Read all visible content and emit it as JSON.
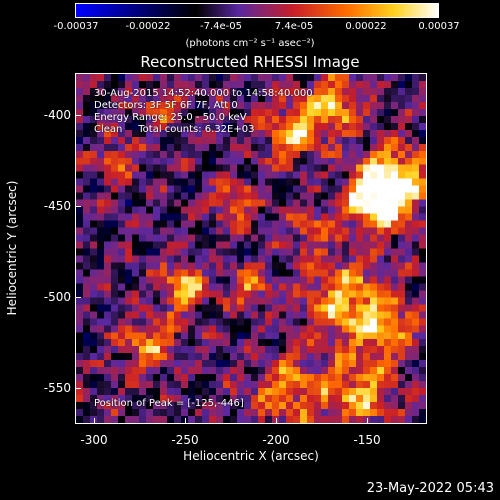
{
  "colorbar": {
    "tick_labels": [
      "-0.00037",
      "-0.00022",
      "-7.4e-05",
      "7.4e-05",
      "0.00022",
      "0.00037"
    ],
    "unit_text": "(photons cm⁻² s⁻¹ asec⁻²)"
  },
  "title": "Reconstructed RHESSI Image",
  "info": {
    "line1": "30-Aug-2015 14:52:40.000 to 14:58:40.000",
    "line2": "Detectors: 3F 5F 6F 7F, Att 0",
    "line3": "Energy Range: 25.0 - 50.0 keV",
    "line4": "Clean     Total counts: 6.32E+03",
    "peak": "Position of Peak = [-125,-446]"
  },
  "axes": {
    "xlabel": "Heliocentric X (arcsec)",
    "ylabel": "Heliocentric Y (arcsec)",
    "xticks": [
      "-300",
      "-250",
      "-200",
      "-150"
    ],
    "yticks": [
      "-400",
      "-450",
      "-500",
      "-550"
    ]
  },
  "timestamp": "23-May-2022 05:43"
}
